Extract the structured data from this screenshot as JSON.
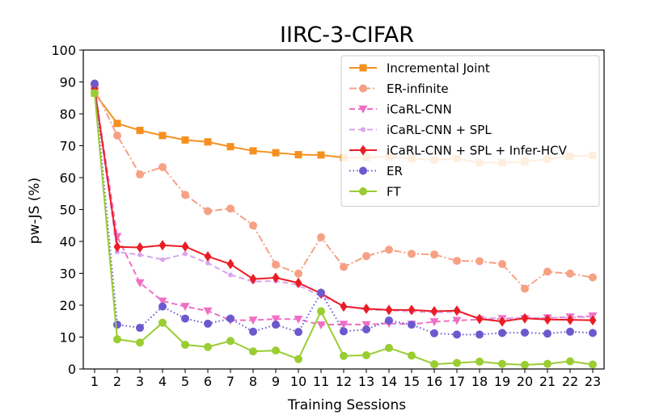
{
  "chart_data": {
    "type": "line",
    "title": "IIRC-3-CIFAR",
    "xlabel": "Training Sessions",
    "ylabel": "pw-JS (%)",
    "xlim": [
      1,
      23
    ],
    "ylim": [
      0,
      100
    ],
    "yticks": [
      0,
      10,
      20,
      30,
      40,
      50,
      60,
      70,
      80,
      90,
      100
    ],
    "x": [
      1,
      2,
      3,
      4,
      5,
      6,
      7,
      8,
      9,
      10,
      11,
      12,
      13,
      14,
      15,
      16,
      17,
      18,
      19,
      20,
      21,
      22,
      23
    ],
    "grid": false,
    "legend_position": "top-right",
    "series": [
      {
        "name": "Incremental Joint",
        "color": "#f5901e",
        "line_style": "solid",
        "marker": "square",
        "values": [
          86.5,
          77,
          74.8,
          73.2,
          71.8,
          71.2,
          69.7,
          68.4,
          67.8,
          67.2,
          67.1,
          66.3,
          66.3,
          66.5,
          66.0,
          65.5,
          66.0,
          64.7,
          64.7,
          65.0,
          65.8,
          66.7,
          67.0
        ]
      },
      {
        "name": "ER-infinite",
        "color": "#f6a184",
        "line_style": "dashdot",
        "marker": "circle",
        "values": [
          88,
          73.2,
          61,
          63.3,
          54.6,
          49.5,
          50.3,
          45,
          32.7,
          29.9,
          41.3,
          32,
          35.4,
          37.4,
          36.1,
          35.9,
          33.9,
          33.8,
          32.9,
          25.2,
          30.5,
          29.9,
          28.7
        ]
      },
      {
        "name": "iCaRL-CNN",
        "color": "#f06fc4",
        "line_style": "dashed",
        "marker": "triangle-down",
        "values": [
          88,
          41.5,
          27,
          21.3,
          19.6,
          18.2,
          15.3,
          15.3,
          15.7,
          15.6,
          13.8,
          14.0,
          13.9,
          14.3,
          14.0,
          14.8,
          15.2,
          15.5,
          15.8,
          15.8,
          16.0,
          16.3,
          16.6
        ]
      },
      {
        "name": "iCaRL-CNN + SPL",
        "color": "#d9a6eb",
        "line_style": "dashed",
        "marker": "small-circle",
        "values": [
          88,
          36.7,
          35.8,
          34.3,
          36.1,
          33.2,
          29.5,
          27.4,
          27.6,
          26.3,
          22.8,
          19.9,
          18.6,
          18.4,
          18.0,
          17.7,
          17.9,
          16.0,
          15.9,
          16.1,
          16.0,
          16.1,
          16.3
        ]
      },
      {
        "name": "iCaRL-CNN + SPL + Infer-HCV",
        "color": "#ec1c24",
        "line_style": "solid",
        "marker": "diamond",
        "values": [
          88,
          38.3,
          38.1,
          38.8,
          38.4,
          35.3,
          32.9,
          28.2,
          28.6,
          27.0,
          23.7,
          19.6,
          18.9,
          18.5,
          18.5,
          18.1,
          18.3,
          15.7,
          14.9,
          15.9,
          15.5,
          15.4,
          15.3
        ]
      },
      {
        "name": "ER",
        "color": "#6a5acd",
        "line_style": "dotted",
        "marker": "circle",
        "values": [
          89.5,
          13.9,
          12.9,
          19.6,
          15.8,
          14.2,
          15.8,
          11.7,
          13.9,
          11.6,
          23.9,
          11.8,
          12.4,
          15.2,
          13.9,
          11.2,
          10.8,
          10.8,
          11.3,
          11.4,
          11.1,
          11.7,
          11.3
        ]
      },
      {
        "name": "FT",
        "color": "#9acd32",
        "line_style": "solid",
        "marker": "circle",
        "values": [
          86.5,
          9.3,
          8.3,
          14.5,
          7.6,
          6.9,
          8.8,
          5.5,
          5.8,
          3.1,
          18.1,
          4.1,
          4.3,
          6.6,
          4.2,
          1.5,
          1.9,
          2.3,
          1.6,
          1.3,
          1.6,
          2.4,
          1.4
        ]
      }
    ]
  }
}
